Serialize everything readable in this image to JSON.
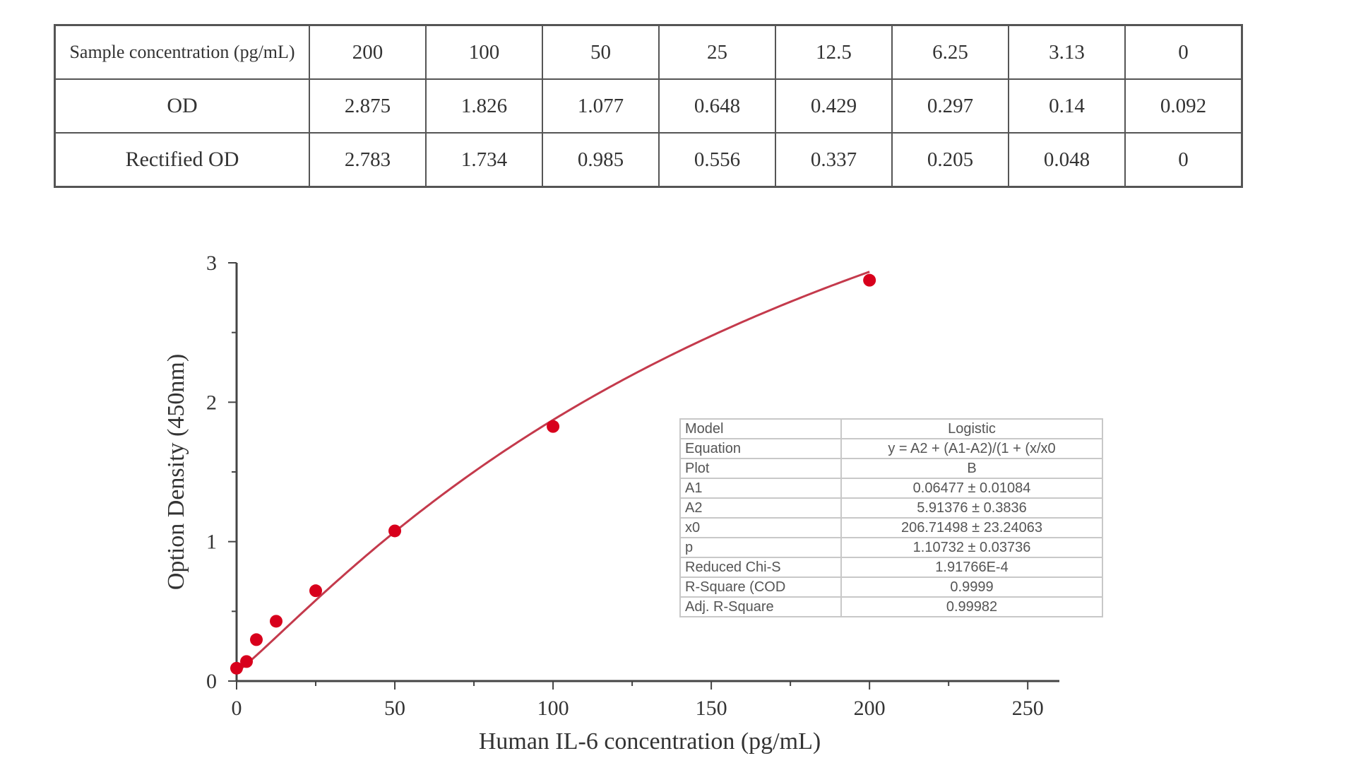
{
  "table": {
    "rows": [
      {
        "label": "Sample concentration (pg/mL)",
        "cells": [
          "200",
          "100",
          "50",
          "25",
          "12.5",
          "6.25",
          "3.13",
          "0"
        ]
      },
      {
        "label": "OD",
        "cells": [
          "2.875",
          "1.826",
          "1.077",
          "0.648",
          "0.429",
          "0.297",
          "0.14",
          "0.092"
        ]
      },
      {
        "label": "Rectified OD",
        "cells": [
          "2.783",
          "1.734",
          "0.985",
          "0.556",
          "0.337",
          "0.205",
          "0.048",
          "0"
        ]
      }
    ]
  },
  "fit_table": {
    "rows": [
      {
        "name": "Model",
        "value": "Logistic"
      },
      {
        "name": "Equation",
        "value": "y = A2 + (A1-A2)/(1 + (x/x0"
      },
      {
        "name": "Plot",
        "value": "B"
      },
      {
        "name": "A1",
        "value": "0.06477 ± 0.01084"
      },
      {
        "name": "A2",
        "value": "5.91376 ± 0.3836"
      },
      {
        "name": "x0",
        "value": "206.71498 ± 23.24063"
      },
      {
        "name": "p",
        "value": "1.10732 ± 0.03736"
      },
      {
        "name": "Reduced Chi-S",
        "value": "1.91766E-4"
      },
      {
        "name": "R-Square (COD",
        "value": "0.9999"
      },
      {
        "name": "Adj. R-Square",
        "value": "0.99982"
      }
    ]
  },
  "chart_data": {
    "type": "scatter",
    "xlabel": "Human IL-6 concentration (pg/mL)",
    "ylabel": "Option Density (450nm)",
    "xlim": [
      0,
      260
    ],
    "ylim": [
      0,
      3
    ],
    "x_ticks": [
      0,
      50,
      100,
      150,
      200,
      250
    ],
    "y_ticks": [
      0,
      1,
      2,
      3
    ],
    "grid": false,
    "series": [
      {
        "x": [
          0,
          3.13,
          6.25,
          12.5,
          25,
          50,
          100,
          200
        ],
        "y": [
          0.092,
          0.14,
          0.297,
          0.429,
          0.648,
          1.077,
          1.826,
          2.875
        ]
      }
    ],
    "fit": {
      "model": "logistic",
      "A1": 0.06477,
      "A2": 5.91376,
      "x0": 206.71498,
      "p": 1.10732,
      "x_range": [
        0,
        200
      ]
    },
    "colors": {
      "points": "#d8001c",
      "curve": "#c43a4c",
      "axis": "#444444"
    }
  }
}
